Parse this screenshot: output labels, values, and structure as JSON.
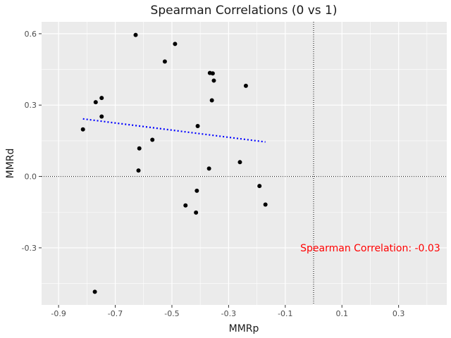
{
  "chart_data": {
    "type": "scatter",
    "title": "Spearman Correlations (0 vs 1)",
    "xlabel": "MMRp",
    "ylabel": "MMRd",
    "xlim": [
      -0.96,
      0.47
    ],
    "ylim": [
      -0.54,
      0.65
    ],
    "x_ticks": [
      -0.9,
      -0.7,
      -0.5,
      -0.3,
      -0.1,
      0.1,
      0.3
    ],
    "x_tick_labels": [
      "-0.9",
      "-0.7",
      "-0.5",
      "-0.3",
      "-0.1",
      "0.1",
      "0.3"
    ],
    "y_ticks": [
      -0.3,
      0.0,
      0.3,
      0.6
    ],
    "y_tick_labels": [
      "-0.3",
      "0.0",
      "0.3",
      "0.6"
    ],
    "grid": true,
    "points": [
      {
        "x": -0.628,
        "y": 0.595
      },
      {
        "x": -0.489,
        "y": 0.557
      },
      {
        "x": -0.525,
        "y": 0.483
      },
      {
        "x": -0.366,
        "y": 0.435
      },
      {
        "x": -0.356,
        "y": 0.433
      },
      {
        "x": -0.352,
        "y": 0.403
      },
      {
        "x": -0.239,
        "y": 0.381
      },
      {
        "x": -0.748,
        "y": 0.33
      },
      {
        "x": -0.769,
        "y": 0.312
      },
      {
        "x": -0.359,
        "y": 0.32
      },
      {
        "x": -0.748,
        "y": 0.252
      },
      {
        "x": -0.409,
        "y": 0.212
      },
      {
        "x": -0.814,
        "y": 0.198
      },
      {
        "x": -0.569,
        "y": 0.154
      },
      {
        "x": -0.615,
        "y": 0.118
      },
      {
        "x": -0.26,
        "y": 0.06
      },
      {
        "x": -0.618,
        "y": 0.025
      },
      {
        "x": -0.369,
        "y": 0.033
      },
      {
        "x": -0.191,
        "y": -0.04
      },
      {
        "x": -0.412,
        "y": -0.06
      },
      {
        "x": -0.17,
        "y": -0.118
      },
      {
        "x": -0.452,
        "y": -0.122
      },
      {
        "x": -0.415,
        "y": -0.152
      },
      {
        "x": -0.772,
        "y": -0.485
      }
    ],
    "trend_line": {
      "x": [
        -0.814,
        -0.17
      ],
      "y": [
        0.242,
        0.145
      ],
      "color": "#0000ff",
      "style": "dotted"
    },
    "reference_lines": {
      "x": 0.0,
      "y": 0.0,
      "style": "dotted",
      "color": "#000000"
    },
    "annotation": {
      "text": "Spearman Correlation: -0.03",
      "x": 0.2,
      "y": -0.3,
      "color": "#ff0000"
    },
    "panel_color": "#ebebeb",
    "grid_color": "#ffffff",
    "point_color": "#000000"
  }
}
